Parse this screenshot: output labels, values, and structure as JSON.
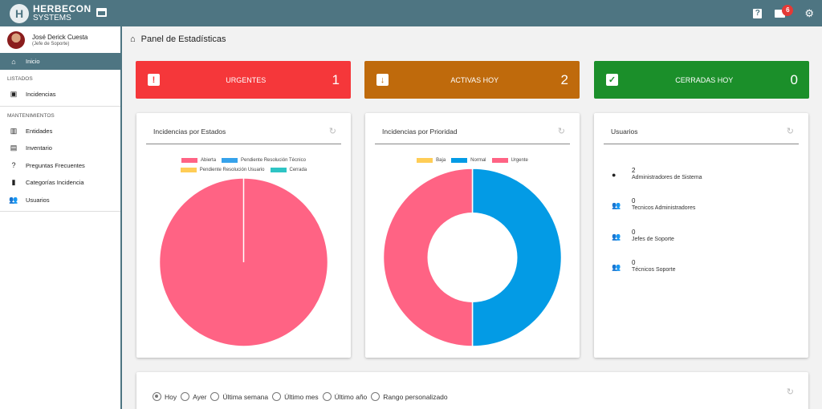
{
  "brand": {
    "line1": "HERBECON",
    "line2": "SYSTEMS",
    "mark": "H"
  },
  "topbar": {
    "help_icon": "question-icon",
    "messages_icon": "message-icon",
    "messages_badge": "6",
    "settings_icon": "gear-icon"
  },
  "user": {
    "name": "José Derick Cuesta",
    "role": "(Jefe de Soporte)"
  },
  "sidebar": {
    "active": {
      "label": "Inicio",
      "icon": "home-icon"
    },
    "section_listados": "LISTADOS",
    "listados": [
      {
        "label": "Incidencias",
        "icon": "incidencias-icon"
      }
    ],
    "section_mantenimientos": "MANTENIMIENTOS",
    "mantenimientos": [
      {
        "label": "Entidades",
        "icon": "bank-icon"
      },
      {
        "label": "Inventario",
        "icon": "inventory-icon"
      },
      {
        "label": "Preguntas Frecuentes",
        "icon": "question-icon"
      },
      {
        "label": "Categorías Incidencia",
        "icon": "book-icon"
      },
      {
        "label": "Usuarios",
        "icon": "users-icon"
      }
    ]
  },
  "page": {
    "title": "Panel de Estadísticas"
  },
  "stats": [
    {
      "label": "URGENTES",
      "value": "1",
      "color": "#f5373a",
      "icon": "alert-clipboard-icon"
    },
    {
      "label": "ACTIVAS HOY",
      "value": "2",
      "color": "#bf6a0c",
      "icon": "download-clipboard-icon"
    },
    {
      "label": "CERRADAS HOY",
      "value": "0",
      "color": "#1b8f2a",
      "icon": "check-clipboard-icon"
    }
  ],
  "cards": {
    "estados": {
      "title": "Incidencias por Estados"
    },
    "prioridad": {
      "title": "Incidencias por Prioridad"
    },
    "usuarios": {
      "title": "Usuarios"
    }
  },
  "chart_data": [
    {
      "type": "pie",
      "title": "Incidencias por Estados",
      "categories": [
        "Abierta",
        "Pendiente Resolución Técnico",
        "Pendiente Resolución Usuario",
        "Cerrada"
      ],
      "values": [
        1,
        0,
        0,
        0
      ],
      "colors": [
        "#ff6384",
        "#36a2eb",
        "#ffcd56",
        "#2ec4c4"
      ]
    },
    {
      "type": "pie",
      "subtype": "doughnut",
      "title": "Incidencias por Prioridad",
      "categories": [
        "Baja",
        "Normal",
        "Urgente"
      ],
      "values": [
        0,
        1,
        1
      ],
      "colors": [
        "#ffcd56",
        "#039be5",
        "#ff6384"
      ]
    }
  ],
  "usuarios": [
    {
      "value": "2",
      "label": "Administradores de Sistema",
      "icon": "person-icon"
    },
    {
      "value": "0",
      "label": "Tecnicos Administradores",
      "icon": "people-icon"
    },
    {
      "value": "0",
      "label": "Jefes de Soporte",
      "icon": "people-icon"
    },
    {
      "value": "0",
      "label": "Técnicos Soporte",
      "icon": "people-icon"
    }
  ],
  "filters": {
    "selected": "Hoy",
    "options": [
      "Hoy",
      "Ayer",
      "Última semana",
      "Último mes",
      "Último año",
      "Rango personalizado"
    ]
  }
}
